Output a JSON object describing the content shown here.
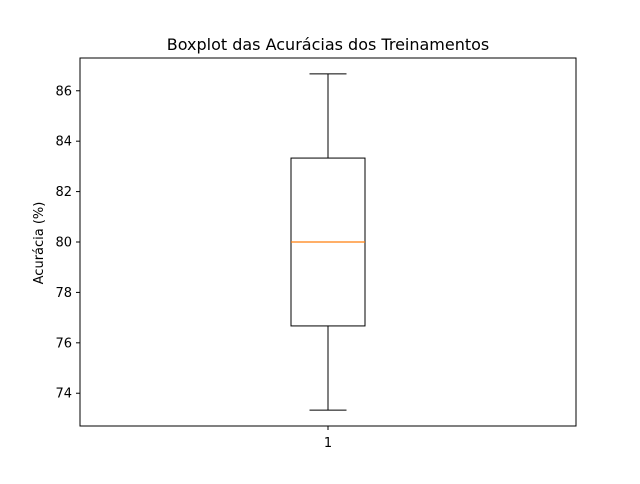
{
  "chart_data": {
    "type": "boxplot",
    "title": "Boxplot das Acurácias dos Treinamentos",
    "xlabel": "",
    "ylabel": "Acurácia (%)",
    "categories": [
      "1"
    ],
    "boxes": [
      {
        "category": "1",
        "whisker_low": 73.33,
        "q1": 76.67,
        "median": 80.0,
        "q3": 83.33,
        "whisker_high": 86.67
      }
    ],
    "ylim": [
      72.7,
      87.3
    ],
    "yticks": [
      74,
      76,
      78,
      80,
      82,
      84,
      86
    ],
    "grid": false,
    "colors": {
      "box": "#000000",
      "median": "#ff7f0e",
      "axes": "#000000"
    }
  }
}
